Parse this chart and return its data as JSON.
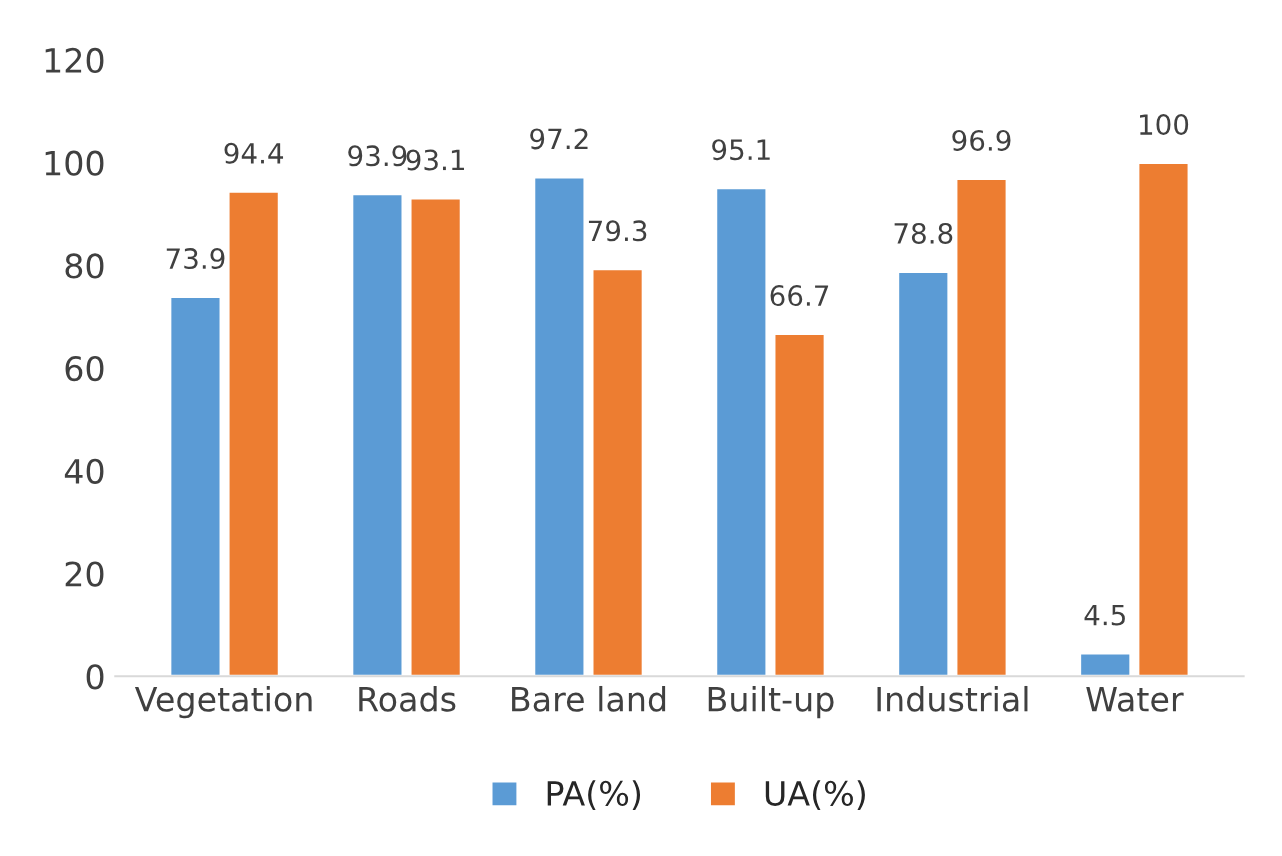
{
  "chart_data": {
    "type": "bar",
    "categories": [
      "Vegetation",
      "Roads",
      "Bare land",
      "Built-up",
      "Industrial",
      "Water"
    ],
    "series": [
      {
        "name": "PA(%)",
        "color": "#5b9bd5",
        "values": [
          73.9,
          93.9,
          97.2,
          95.1,
          78.8,
          4.5
        ]
      },
      {
        "name": "UA(%)",
        "color": "#ed7d31",
        "values": [
          94.4,
          93.1,
          79.3,
          66.7,
          96.9,
          100
        ]
      }
    ],
    "ylim": [
      0,
      120
    ],
    "yticks": [
      0,
      20,
      40,
      60,
      80,
      100,
      120
    ],
    "data_labels": true,
    "grid": false,
    "legend": "bottom"
  }
}
